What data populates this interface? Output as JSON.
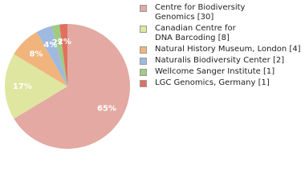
{
  "chart_data": {
    "type": "pie",
    "series": [
      {
        "name": "Centre for Biodiversity Genomics [30]",
        "color": "#e3a9a2",
        "values": [
          65
        ]
      },
      {
        "name": "Canadian Centre for DNA Barcoding [8]",
        "color": "#dfe6a0",
        "values": [
          17
        ]
      },
      {
        "name": "Natural History Museum, London [4]",
        "color": "#f0b47c",
        "values": [
          8
        ]
      },
      {
        "name": "Naturalis Biodiversity Center [2]",
        "color": "#a0b9e0",
        "values": [
          4
        ]
      },
      {
        "name": "Wellcome Sanger Institute [1]",
        "color": "#a0cb84",
        "values": [
          2
        ]
      },
      {
        "name": "LGC Genomics, Germany [1]",
        "color": "#e0715e",
        "values": [
          2
        ]
      }
    ],
    "value_labels": [
      "65%",
      "17%",
      "8%",
      "4%",
      "2%",
      "2%"
    ]
  }
}
